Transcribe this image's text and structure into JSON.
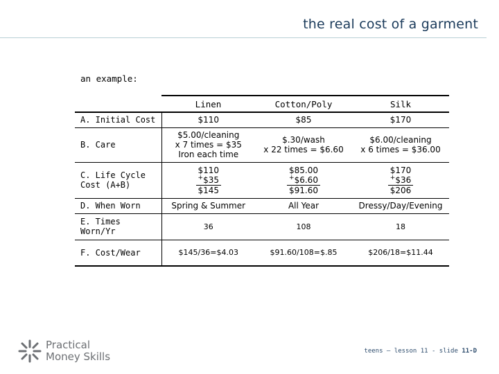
{
  "header": {
    "title": "the real cost of a garment"
  },
  "intro": "an example:",
  "table": {
    "columns": [
      "Linen",
      "Cotton/Poly",
      "Silk"
    ],
    "rows": {
      "initial_cost": {
        "label": "A. Initial Cost",
        "values": [
          "$110",
          "$85",
          "$170"
        ]
      },
      "care": {
        "label": "B. Care",
        "values": [
          [
            "$5.00/cleaning",
            "x 7 times = $35",
            "Iron each time"
          ],
          [
            "$.30/wash",
            "x 22 times = $6.60"
          ],
          [
            "$6.00/cleaning",
            "x 6 times = $36.00"
          ]
        ]
      },
      "life_cycle": {
        "label": "C. Life Cycle\n   Cost (A+B)",
        "values": [
          {
            "a": "$110",
            "plus": "+",
            "b": "$35",
            "total": "$145"
          },
          {
            "a": "$85.00",
            "plus": "+",
            "b": "$6.60",
            "total": "$91.60"
          },
          {
            "a": "$170",
            "plus": "+",
            "b": "$36",
            "total": "$206"
          }
        ]
      },
      "when_worn": {
        "label": "D. When Worn",
        "values": [
          "Spring & Summer",
          "All Year",
          "Dressy/Day/Evening"
        ]
      },
      "times_worn": {
        "label": "E. Times\n   Worn/Yr",
        "values": [
          "36",
          "108",
          "18"
        ]
      },
      "cost_wear": {
        "label": "F. Cost/Wear",
        "values": [
          "$145/36=$4.03",
          "$91.60/108=$.85",
          "$206/18=$11.44"
        ]
      }
    }
  },
  "logo": {
    "icon": "starburst-logo-icon",
    "line1": "Practical",
    "line2": "Money Skills"
  },
  "footer": {
    "text": "teens – lesson 11 - slide ",
    "slide": "11-D"
  }
}
